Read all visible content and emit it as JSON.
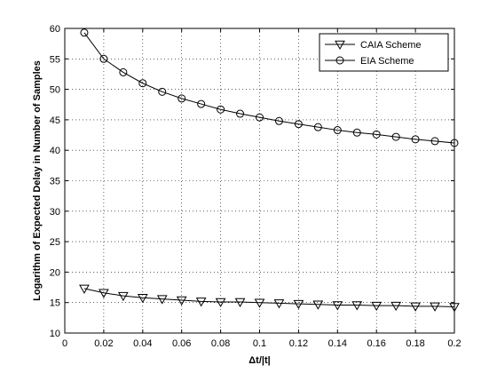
{
  "chart_data": {
    "type": "line",
    "xlabel": "Δt/|t|",
    "ylabel": "Logarithm of Expected Delay in Number of Samples",
    "xlim": [
      0,
      0.2
    ],
    "ylim": [
      10,
      60
    ],
    "x_ticks": [
      0,
      0.02,
      0.04,
      0.06,
      0.08,
      0.1,
      0.12,
      0.14,
      0.16,
      0.18,
      0.2
    ],
    "x_tick_labels": [
      "0",
      "0.02",
      "0.04",
      "0.06",
      "0.08",
      "0.1",
      "0.12",
      "0.14",
      "0.16",
      "0.18",
      "0.2"
    ],
    "y_ticks": [
      10,
      15,
      20,
      25,
      30,
      35,
      40,
      45,
      50,
      55,
      60
    ],
    "y_tick_labels": [
      "10",
      "15",
      "20",
      "25",
      "30",
      "35",
      "40",
      "45",
      "50",
      "55",
      "60"
    ],
    "grid": true,
    "legend_position": "top-right",
    "x": [
      0.01,
      0.02,
      0.03,
      0.04,
      0.05,
      0.06,
      0.07,
      0.08,
      0.09,
      0.1,
      0.11,
      0.12,
      0.13,
      0.14,
      0.15,
      0.16,
      0.17,
      0.18,
      0.19,
      0.2
    ],
    "series": [
      {
        "name": "CAIA Scheme",
        "marker": "triangle-down",
        "color": "#000000",
        "values": [
          17.3,
          16.6,
          16.1,
          15.8,
          15.6,
          15.4,
          15.2,
          15.1,
          15.1,
          15.0,
          14.9,
          14.8,
          14.7,
          14.6,
          14.6,
          14.5,
          14.5,
          14.4,
          14.4,
          14.3
        ]
      },
      {
        "name": "EIA Scheme",
        "marker": "circle",
        "color": "#000000",
        "values": [
          59.3,
          55.0,
          52.8,
          51.0,
          49.6,
          48.5,
          47.6,
          46.7,
          46.0,
          45.4,
          44.8,
          44.3,
          43.8,
          43.3,
          42.9,
          42.6,
          42.2,
          41.8,
          41.5,
          41.2
        ]
      }
    ]
  }
}
